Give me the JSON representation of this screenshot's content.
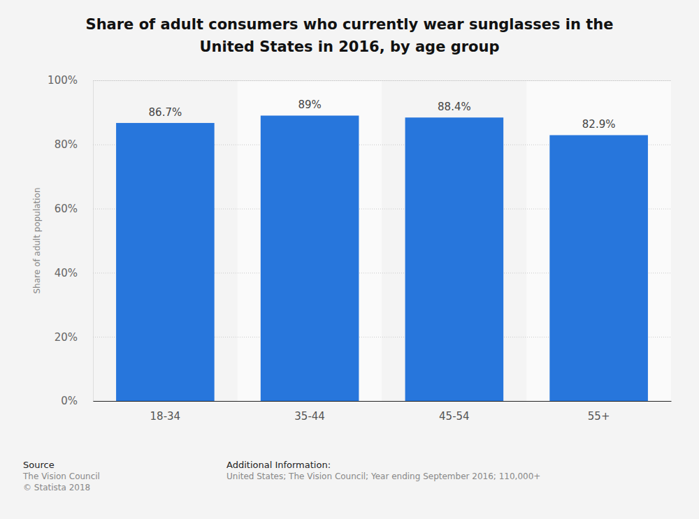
{
  "chart_data": {
    "type": "bar",
    "title": "Share of adult consumers who currently wear sunglasses in the United States in 2016, by age group",
    "y_label": "Share of adult population",
    "categories": [
      "18-34",
      "35-44",
      "45-54",
      "55+"
    ],
    "values": [
      86.7,
      89,
      88.4,
      82.9
    ],
    "value_labels": [
      "86.7%",
      "89%",
      "88.4%",
      "82.9%"
    ],
    "color": "#2776dc",
    "ylim": [
      0,
      100
    ],
    "yticks": [
      {
        "value": 0,
        "label": "0%"
      },
      {
        "value": 20,
        "label": "20%"
      },
      {
        "value": 40,
        "label": "40%"
      },
      {
        "value": 60,
        "label": "60%"
      },
      {
        "value": 80,
        "label": "80%"
      },
      {
        "value": 100,
        "label": "100%"
      }
    ],
    "grid": true,
    "data_labels": true,
    "source": [
      "Source",
      "The Vision Council",
      "© Statista 2018"
    ],
    "additional_information": [
      "Additional Information:",
      "United States; The Vision Council; Year ending September 2016; 110,000+"
    ]
  }
}
